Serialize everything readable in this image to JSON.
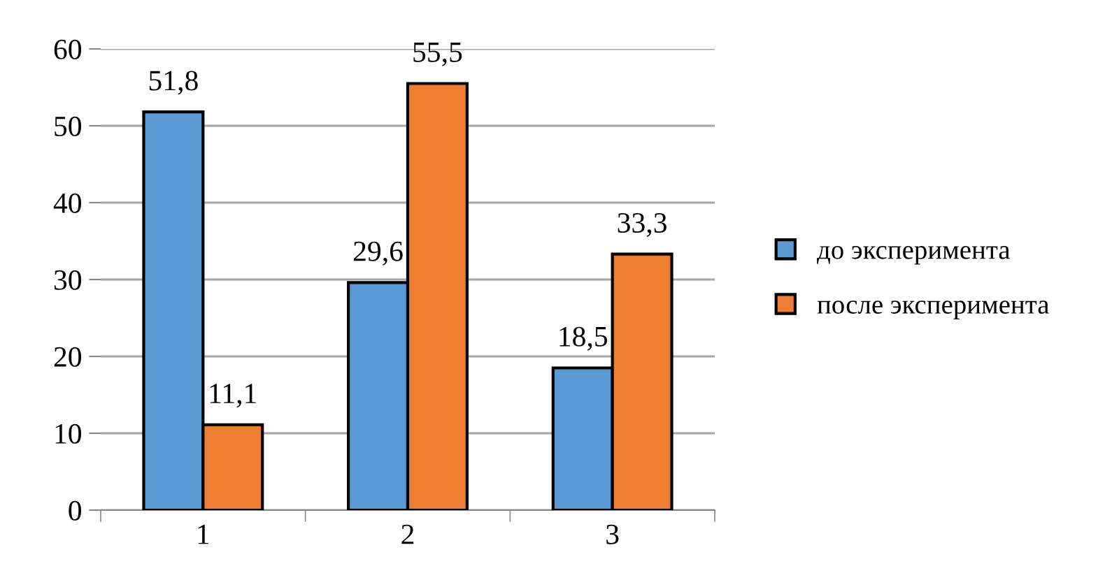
{
  "chart_data": {
    "type": "bar",
    "categories": [
      "1",
      "2",
      "3"
    ],
    "series": [
      {
        "name": "до эксперимента",
        "color": "#5b9bd5",
        "values": [
          51.8,
          29.6,
          18.5
        ],
        "value_labels": [
          "51,8",
          "29,6",
          "18,5"
        ]
      },
      {
        "name": "после эксперимента",
        "color": "#ed7d31",
        "values": [
          11.1,
          55.5,
          33.3
        ],
        "value_labels": [
          "11,1",
          "55,5",
          "33,3"
        ]
      }
    ],
    "ylim": [
      0,
      60
    ],
    "yticks": [
      0,
      10,
      20,
      30,
      40,
      50,
      60
    ],
    "grid": "y",
    "legend": "right"
  }
}
